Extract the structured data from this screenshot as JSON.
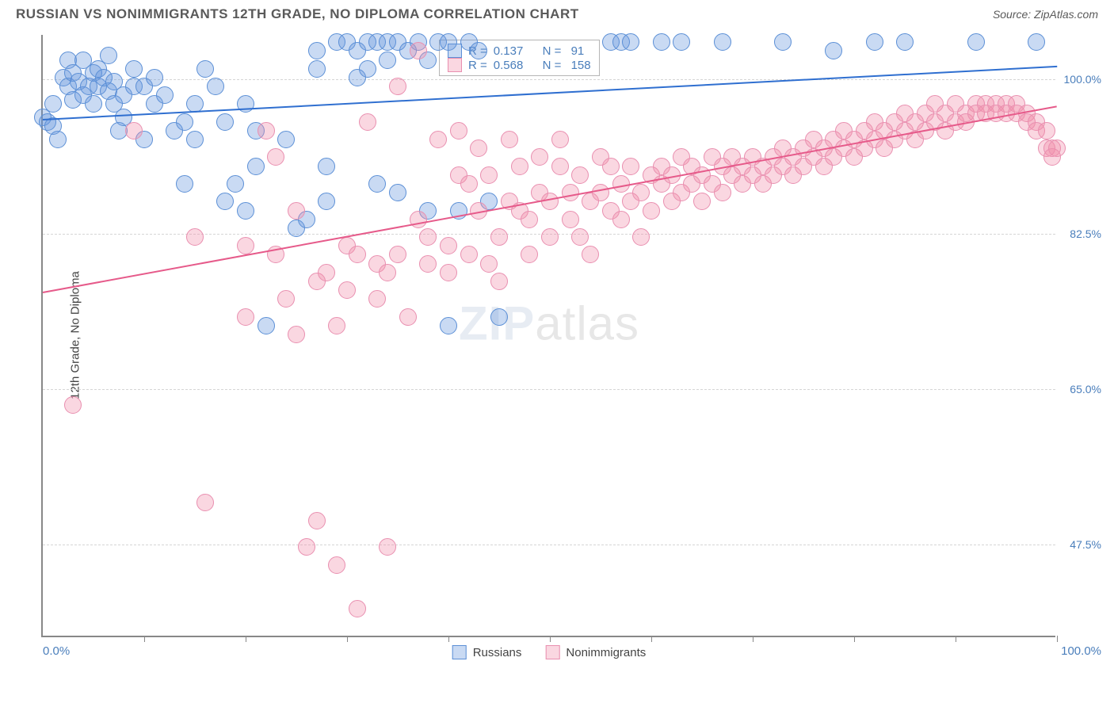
{
  "header": {
    "title": "RUSSIAN VS NONIMMIGRANTS 12TH GRADE, NO DIPLOMA CORRELATION CHART",
    "source": "Source: ZipAtlas.com"
  },
  "watermark": {
    "bold": "ZIP",
    "thin": "atlas"
  },
  "chart": {
    "type": "scatter",
    "ylabel": "12th Grade, No Diploma",
    "xlim": [
      0,
      100
    ],
    "ylim": [
      37,
      105
    ],
    "xlabel_min": "0.0%",
    "xlabel_max": "100.0%",
    "xticks": [
      10,
      20,
      30,
      40,
      50,
      60,
      70,
      80,
      90,
      100
    ],
    "ygrid": [
      {
        "v": 100.0,
        "label": "100.0%"
      },
      {
        "v": 82.5,
        "label": "82.5%"
      },
      {
        "v": 65.0,
        "label": "65.0%"
      },
      {
        "v": 47.5,
        "label": "47.5%"
      }
    ],
    "series": [
      {
        "name": "Russians",
        "fill": "rgba(100,150,220,0.35)",
        "stroke": "#5b8fd6",
        "trend_color": "#2f6fd0",
        "r_value": "0.137",
        "n_value": "91",
        "trend": {
          "x1": 0,
          "y1": 95.5,
          "x2": 100,
          "y2": 101.5
        },
        "marker_r": 11,
        "points": [
          [
            0,
            95.5
          ],
          [
            0.5,
            95
          ],
          [
            1,
            97
          ],
          [
            1,
            94.5
          ],
          [
            1.5,
            93
          ],
          [
            2,
            100
          ],
          [
            2.5,
            99
          ],
          [
            2.5,
            102
          ],
          [
            3,
            97.5
          ],
          [
            3,
            100.5
          ],
          [
            3.5,
            99.5
          ],
          [
            4,
            102
          ],
          [
            4,
            98
          ],
          [
            4.5,
            99
          ],
          [
            5,
            100.5
          ],
          [
            5,
            97
          ],
          [
            5.5,
            101
          ],
          [
            5.5,
            99
          ],
          [
            6,
            100
          ],
          [
            6.5,
            98.5
          ],
          [
            6.5,
            102.5
          ],
          [
            7,
            99.5
          ],
          [
            7,
            97
          ],
          [
            7.5,
            94
          ],
          [
            8,
            98
          ],
          [
            8,
            95.5
          ],
          [
            9,
            99
          ],
          [
            9,
            101
          ],
          [
            10,
            99
          ],
          [
            10,
            93
          ],
          [
            11,
            100
          ],
          [
            11,
            97
          ],
          [
            12,
            98
          ],
          [
            13,
            94
          ],
          [
            14,
            95
          ],
          [
            14,
            88
          ],
          [
            15,
            97
          ],
          [
            15,
            93
          ],
          [
            16,
            101
          ],
          [
            17,
            99
          ],
          [
            18,
            86
          ],
          [
            18,
            95
          ],
          [
            19,
            88
          ],
          [
            20,
            97
          ],
          [
            20,
            85
          ],
          [
            21,
            90
          ],
          [
            21,
            94
          ],
          [
            22,
            72
          ],
          [
            24,
            93
          ],
          [
            25,
            83
          ],
          [
            26,
            84
          ],
          [
            27,
            101
          ],
          [
            27,
            103
          ],
          [
            28,
            86
          ],
          [
            28,
            90
          ],
          [
            29,
            104
          ],
          [
            30,
            104
          ],
          [
            31,
            103
          ],
          [
            31,
            100
          ],
          [
            32,
            104
          ],
          [
            32,
            101
          ],
          [
            33,
            88
          ],
          [
            33,
            104
          ],
          [
            34,
            104
          ],
          [
            34,
            102
          ],
          [
            35,
            87
          ],
          [
            35,
            104
          ],
          [
            36,
            103
          ],
          [
            37,
            104
          ],
          [
            38,
            102
          ],
          [
            38,
            85
          ],
          [
            39,
            104
          ],
          [
            40,
            104
          ],
          [
            40,
            72
          ],
          [
            41,
            85
          ],
          [
            42,
            104
          ],
          [
            43,
            103
          ],
          [
            44,
            86
          ],
          [
            45,
            73
          ],
          [
            56,
            104
          ],
          [
            57,
            104
          ],
          [
            58,
            104
          ],
          [
            61,
            104
          ],
          [
            63,
            104
          ],
          [
            67,
            104
          ],
          [
            73,
            104
          ],
          [
            78,
            103
          ],
          [
            82,
            104
          ],
          [
            85,
            104
          ],
          [
            92,
            104
          ],
          [
            98,
            104
          ]
        ]
      },
      {
        "name": "Nonimmigrants",
        "fill": "rgba(240,140,170,0.35)",
        "stroke": "#e98fb0",
        "trend_color": "#e65a8a",
        "r_value": "0.568",
        "n_value": "158",
        "trend": {
          "x1": 0,
          "y1": 76,
          "x2": 100,
          "y2": 97
        },
        "marker_r": 11,
        "points": [
          [
            3,
            63
          ],
          [
            9,
            94
          ],
          [
            15,
            82
          ],
          [
            16,
            52
          ],
          [
            20,
            81
          ],
          [
            20,
            73
          ],
          [
            22,
            94
          ],
          [
            23,
            91
          ],
          [
            23,
            80
          ],
          [
            24,
            75
          ],
          [
            25,
            71
          ],
          [
            25,
            85
          ],
          [
            26,
            47
          ],
          [
            27,
            50
          ],
          [
            27,
            77
          ],
          [
            28,
            78
          ],
          [
            29,
            72
          ],
          [
            29,
            45
          ],
          [
            30,
            76
          ],
          [
            30,
            81
          ],
          [
            31,
            80
          ],
          [
            31,
            40
          ],
          [
            32,
            95
          ],
          [
            33,
            79
          ],
          [
            33,
            75
          ],
          [
            34,
            47
          ],
          [
            34,
            78
          ],
          [
            35,
            99
          ],
          [
            35,
            80
          ],
          [
            36,
            73
          ],
          [
            37,
            84
          ],
          [
            37,
            103
          ],
          [
            38,
            79
          ],
          [
            38,
            82
          ],
          [
            39,
            93
          ],
          [
            40,
            81
          ],
          [
            40,
            78
          ],
          [
            41,
            89
          ],
          [
            41,
            94
          ],
          [
            42,
            88
          ],
          [
            42,
            80
          ],
          [
            43,
            92
          ],
          [
            43,
            85
          ],
          [
            44,
            79
          ],
          [
            44,
            89
          ],
          [
            45,
            77
          ],
          [
            45,
            82
          ],
          [
            46,
            93
          ],
          [
            46,
            86
          ],
          [
            47,
            90
          ],
          [
            47,
            85
          ],
          [
            48,
            84
          ],
          [
            48,
            80
          ],
          [
            49,
            91
          ],
          [
            49,
            87
          ],
          [
            50,
            86
          ],
          [
            50,
            82
          ],
          [
            51,
            90
          ],
          [
            51,
            93
          ],
          [
            52,
            87
          ],
          [
            52,
            84
          ],
          [
            53,
            82
          ],
          [
            53,
            89
          ],
          [
            54,
            86
          ],
          [
            54,
            80
          ],
          [
            55,
            91
          ],
          [
            55,
            87
          ],
          [
            56,
            90
          ],
          [
            56,
            85
          ],
          [
            57,
            84
          ],
          [
            57,
            88
          ],
          [
            58,
            90
          ],
          [
            58,
            86
          ],
          [
            59,
            87
          ],
          [
            59,
            82
          ],
          [
            60,
            89
          ],
          [
            60,
            85
          ],
          [
            61,
            88
          ],
          [
            61,
            90
          ],
          [
            62,
            86
          ],
          [
            62,
            89
          ],
          [
            63,
            91
          ],
          [
            63,
            87
          ],
          [
            64,
            88
          ],
          [
            64,
            90
          ],
          [
            65,
            89
          ],
          [
            65,
            86
          ],
          [
            66,
            91
          ],
          [
            66,
            88
          ],
          [
            67,
            90
          ],
          [
            67,
            87
          ],
          [
            68,
            89
          ],
          [
            68,
            91
          ],
          [
            69,
            88
          ],
          [
            69,
            90
          ],
          [
            70,
            91
          ],
          [
            70,
            89
          ],
          [
            71,
            90
          ],
          [
            71,
            88
          ],
          [
            72,
            91
          ],
          [
            72,
            89
          ],
          [
            73,
            92
          ],
          [
            73,
            90
          ],
          [
            74,
            91
          ],
          [
            74,
            89
          ],
          [
            75,
            92
          ],
          [
            75,
            90
          ],
          [
            76,
            93
          ],
          [
            76,
            91
          ],
          [
            77,
            92
          ],
          [
            77,
            90
          ],
          [
            78,
            93
          ],
          [
            78,
            91
          ],
          [
            79,
            94
          ],
          [
            79,
            92
          ],
          [
            80,
            93
          ],
          [
            80,
            91
          ],
          [
            81,
            94
          ],
          [
            81,
            92
          ],
          [
            82,
            95
          ],
          [
            82,
            93
          ],
          [
            83,
            94
          ],
          [
            83,
            92
          ],
          [
            84,
            95
          ],
          [
            84,
            93
          ],
          [
            85,
            96
          ],
          [
            85,
            94
          ],
          [
            86,
            95
          ],
          [
            86,
            93
          ],
          [
            87,
            96
          ],
          [
            87,
            94
          ],
          [
            88,
            97
          ],
          [
            88,
            95
          ],
          [
            89,
            96
          ],
          [
            89,
            94
          ],
          [
            90,
            97
          ],
          [
            90,
            95
          ],
          [
            91,
            96
          ],
          [
            91,
            95
          ],
          [
            92,
            97
          ],
          [
            92,
            96
          ],
          [
            93,
            97
          ],
          [
            93,
            96
          ],
          [
            94,
            97
          ],
          [
            94,
            96
          ],
          [
            95,
            97
          ],
          [
            95,
            96
          ],
          [
            96,
            97
          ],
          [
            96,
            96
          ],
          [
            97,
            96
          ],
          [
            97,
            95
          ],
          [
            98,
            95
          ],
          [
            98,
            94
          ],
          [
            99,
            94
          ],
          [
            99,
            92
          ],
          [
            99.5,
            92
          ],
          [
            99.5,
            91
          ],
          [
            100,
            92
          ]
        ]
      }
    ],
    "legend_labels": [
      "Russians",
      "Nonimmigrants"
    ]
  }
}
